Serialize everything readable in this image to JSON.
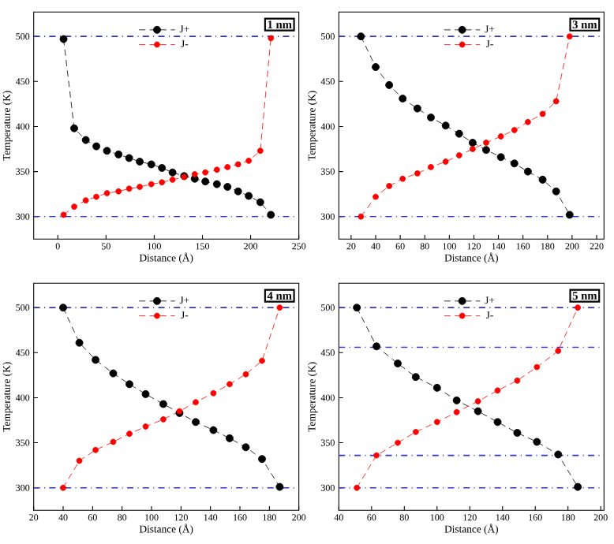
{
  "chart_data": [
    {
      "type": "line",
      "xlabel": "Distance (Å)",
      "ylabel": "Temperature (K)",
      "annotations": [
        "1 nm"
      ],
      "legend": "top",
      "marker": "circle",
      "line_style": "dashed",
      "xlim": [
        -25,
        250
      ],
      "xticks": [
        0,
        50,
        100,
        150,
        200,
        250
      ],
      "ylim": [
        275,
        527
      ],
      "yticks": [
        300,
        350,
        400,
        450,
        500
      ],
      "ref_lines": [
        {
          "axis": "y",
          "value": 500,
          "color": "#3333cc",
          "line_style": "dashdot"
        },
        {
          "axis": "y",
          "value": 300,
          "color": "#3333cc",
          "line_style": "dashdot"
        }
      ],
      "x": [
        6,
        17,
        29,
        40,
        51,
        63,
        74,
        85,
        97,
        108,
        119,
        131,
        142,
        153,
        165,
        176,
        187,
        198,
        210,
        221
      ],
      "series": [
        {
          "name": "J+",
          "color": "#000000",
          "values": [
            497,
            398,
            385,
            378,
            373,
            369,
            365,
            361,
            358,
            354,
            349,
            345,
            342,
            339,
            336,
            333,
            328,
            323,
            316,
            302
          ]
        },
        {
          "name": "J-",
          "color": "#ff0000",
          "values": [
            302,
            311,
            318,
            322,
            326,
            328,
            331,
            333,
            336,
            338,
            341,
            344,
            347,
            349,
            352,
            355,
            358,
            362,
            373,
            498
          ]
        }
      ]
    },
    {
      "type": "line",
      "xlabel": "Distance (Å)",
      "ylabel": "Temperature (K)",
      "annotations": [
        "3 nm"
      ],
      "legend": "top",
      "marker": "circle",
      "line_style": "dashed",
      "xlim": [
        10,
        226
      ],
      "xticks": [
        20,
        40,
        60,
        80,
        100,
        120,
        140,
        160,
        180,
        200,
        220
      ],
      "ylim": [
        275,
        527
      ],
      "yticks": [
        300,
        350,
        400,
        450,
        500
      ],
      "ref_lines": [
        {
          "axis": "y",
          "value": 500,
          "color": "#3333cc",
          "line_style": "dashdot"
        },
        {
          "axis": "y",
          "value": 300,
          "color": "#3333cc",
          "line_style": "dashdot"
        }
      ],
      "x": [
        28,
        40,
        51,
        62,
        74,
        85,
        97,
        108,
        119,
        130,
        142,
        153,
        164,
        176,
        187,
        198
      ],
      "series": [
        {
          "name": "J+",
          "color": "#000000",
          "values": [
            500,
            466,
            446,
            431,
            420,
            410,
            401,
            392,
            382,
            374,
            366,
            359,
            350,
            341,
            328,
            302
          ]
        },
        {
          "name": "J-",
          "color": "#ff0000",
          "values": [
            300,
            322,
            334,
            342,
            348,
            355,
            361,
            368,
            375,
            382,
            389,
            396,
            405,
            414,
            428,
            500
          ]
        }
      ]
    },
    {
      "type": "line",
      "xlabel": "Distance (Å)",
      "ylabel": "Temperature (K)",
      "annotations": [
        "4 nm"
      ],
      "legend": "top",
      "marker": "circle",
      "line_style": "dashed",
      "xlim": [
        20,
        200
      ],
      "xticks": [
        20,
        40,
        60,
        80,
        100,
        120,
        140,
        160,
        180,
        200
      ],
      "ylim": [
        275,
        527
      ],
      "yticks": [
        300,
        350,
        400,
        450,
        500
      ],
      "ref_lines": [
        {
          "axis": "y",
          "value": 500,
          "color": "#3333cc",
          "line_style": "dashdot"
        },
        {
          "axis": "y",
          "value": 300,
          "color": "#3333cc",
          "line_style": "dashdot"
        }
      ],
      "x": [
        40,
        51,
        62,
        74,
        85,
        96,
        108,
        119,
        130,
        142,
        153,
        164,
        175,
        187
      ],
      "series": [
        {
          "name": "J+",
          "color": "#000000",
          "values": [
            500,
            461,
            442,
            427,
            415,
            404,
            393,
            383,
            373,
            364,
            355,
            345,
            332,
            301
          ]
        },
        {
          "name": "J-",
          "color": "#ff0000",
          "values": [
            300,
            330,
            342,
            351,
            360,
            368,
            376,
            385,
            395,
            405,
            415,
            426,
            441,
            500
          ]
        }
      ]
    },
    {
      "type": "line",
      "xlabel": "Distance (Å)",
      "ylabel": "Temperature (K)",
      "annotations": [
        "5 nm"
      ],
      "legend": "top",
      "marker": "circle",
      "line_style": "dashed",
      "xlim": [
        40,
        202
      ],
      "xticks": [
        40,
        60,
        80,
        100,
        120,
        140,
        160,
        180,
        200
      ],
      "ylim": [
        275,
        527
      ],
      "yticks": [
        300,
        350,
        400,
        450,
        500
      ],
      "ref_lines": [
        {
          "axis": "y",
          "value": 500,
          "color": "#3333cc",
          "line_style": "dashdot"
        },
        {
          "axis": "y",
          "value": 456,
          "color": "#3333cc",
          "line_style": "dashdot"
        },
        {
          "axis": "y",
          "value": 336,
          "color": "#3333cc",
          "line_style": "dashdot"
        },
        {
          "axis": "y",
          "value": 300,
          "color": "#3333cc",
          "line_style": "dashdot"
        }
      ],
      "x": [
        51,
        63,
        76,
        87,
        100,
        112,
        125,
        137,
        149,
        161,
        174,
        186
      ],
      "series": [
        {
          "name": "J+",
          "color": "#000000",
          "values": [
            500,
            457,
            438,
            423,
            411,
            397,
            385,
            373,
            361,
            351,
            337,
            301
          ]
        },
        {
          "name": "J-",
          "color": "#ff0000",
          "values": [
            300,
            336,
            350,
            362,
            373,
            384,
            396,
            408,
            419,
            434,
            452,
            500
          ]
        }
      ]
    }
  ]
}
